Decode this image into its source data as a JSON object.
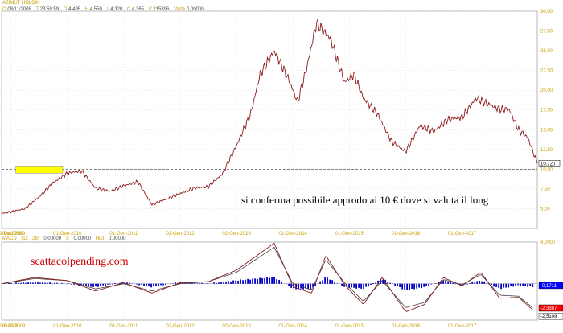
{
  "header": {
    "title": "AZIMUT HOLDIN",
    "date": "08/11/2008",
    "time_value": "23:59:59",
    "open": "4,495",
    "high": "4,550",
    "low": "4,320",
    "close": "4,365",
    "volume": "215896",
    "var": "0,00000",
    "prefix_o": "O",
    "prefix_t": "T",
    "prefix_h": "H",
    "prefix_l": "L",
    "prefix_c": "C",
    "prefix_v": "V",
    "prefix_var": "Var%"
  },
  "annotation": "si conferma possibile approdo ai 10 € dove si valuta il long",
  "watermark": "scattacolpending.com",
  "last_price_label": "10,720",
  "colors": {
    "price": "#8b1a1a",
    "macd_line": "#8b1a1a",
    "signal_line": "#404040",
    "histogram": "#0000cc",
    "box": "#ffff00",
    "accent_red": "#ff0000",
    "accent_blue": "#0000ff",
    "grid": "#d0d0d0",
    "axis_text": "#c8a000"
  },
  "chart_data": [
    {
      "type": "line",
      "series_name": "AZIMUT HOLDIN",
      "x": [
        "2008-11",
        "2009-01",
        "2009-04",
        "2009-07",
        "2009-10",
        "2010-01",
        "2010-04",
        "2010-07",
        "2010-10",
        "2011-01",
        "2011-04",
        "2011-07",
        "2011-10",
        "2012-01",
        "2012-04",
        "2012-07",
        "2012-10",
        "2013-01",
        "2013-04",
        "2013-06",
        "2013-09",
        "2013-12",
        "2014-02",
        "2014-04",
        "2014-06",
        "2014-09",
        "2014-12",
        "2015-02",
        "2015-04",
        "2015-07",
        "2015-10",
        "2016-01",
        "2016-04",
        "2016-07",
        "2016-10",
        "2017-01",
        "2017-04",
        "2017-06",
        "2017-09",
        "2017-11",
        "2018-01",
        "2018-03",
        "2018-05"
      ],
      "values": [
        4.4,
        4.6,
        5.0,
        6.5,
        8.3,
        9.5,
        9.8,
        7.6,
        7.2,
        7.9,
        8.4,
        5.5,
        6.2,
        6.9,
        7.6,
        7.8,
        9.4,
        13.0,
        17.0,
        22.0,
        25.0,
        21.5,
        18.5,
        23.0,
        28.5,
        26.5,
        21.0,
        22.0,
        19.0,
        17.0,
        13.5,
        12.2,
        15.5,
        14.8,
        16.3,
        16.6,
        19.0,
        18.4,
        17.6,
        17.6,
        15.0,
        14.0,
        10.72
      ],
      "yticks": [
        "5,00",
        "7,50",
        "10,00",
        "12,50",
        "15,00",
        "17,50",
        "20,00",
        "22,50",
        "25,00",
        "27,50",
        "30,00"
      ],
      "ylim": [
        2.5,
        30
      ],
      "xticks": [
        "0ro-2008",
        "01-Gen-2009",
        "01-Gen-2010",
        "01-Gen-2011",
        "02-Gen-2012",
        "02-Gen-2013",
        "01-Gen-2014",
        "01-Gen-2015",
        "01-Gen-2016",
        "01-Gen-2017"
      ],
      "support_level": 10.0,
      "grid": true
    },
    {
      "type": "line",
      "title": "MACD",
      "params": "(12 , 26)",
      "values_header": "0,00000",
      "signal_header": "0,00000",
      "hist_header": "0,00000",
      "label_s": "S",
      "label_hist": "Hist",
      "x": [
        "2008-11",
        "2009-06",
        "2010-01",
        "2010-07",
        "2011-01",
        "2011-07",
        "2012-01",
        "2012-07",
        "2013-01",
        "2013-05",
        "2013-09",
        "2014-01",
        "2014-05",
        "2014-08",
        "2014-12",
        "2015-04",
        "2015-08",
        "2016-01",
        "2016-05",
        "2016-09",
        "2017-01",
        "2017-05",
        "2017-09",
        "2018-01",
        "2018-04"
      ],
      "macd": [
        0.0,
        0.6,
        0.3,
        -0.7,
        0.1,
        -0.9,
        0.1,
        0.2,
        1.3,
        2.6,
        3.9,
        -0.3,
        -0.9,
        2.7,
        -0.1,
        -2.0,
        0.6,
        -2.7,
        -2.0,
        0.6,
        -0.2,
        1.1,
        -1.4,
        -1.3,
        -2.5
      ],
      "signal": [
        0.0,
        0.5,
        0.3,
        -0.5,
        0.0,
        -0.7,
        0.0,
        0.2,
        1.1,
        2.3,
        3.5,
        0.0,
        -0.6,
        2.3,
        0.1,
        -1.7,
        0.3,
        -2.3,
        -1.8,
        0.4,
        -0.1,
        0.9,
        -1.1,
        -1.2,
        -2.3
      ],
      "yticks": [
        "4,0000"
      ],
      "ylim": [
        -3.5,
        4.0
      ],
      "labels_right": [
        "-0,1711",
        "-2,3387",
        "-2,5109"
      ],
      "xticks": [
        "0r 2008",
        "01-Gen-2009",
        "01-Gen-2010",
        "01-Gen-2011",
        "02-Gen-2012",
        "02-Gen-2013",
        "01-Gen-2014",
        "01-Gen-2015",
        "01-Gen-2016",
        "01-Gen-2017"
      ]
    }
  ]
}
